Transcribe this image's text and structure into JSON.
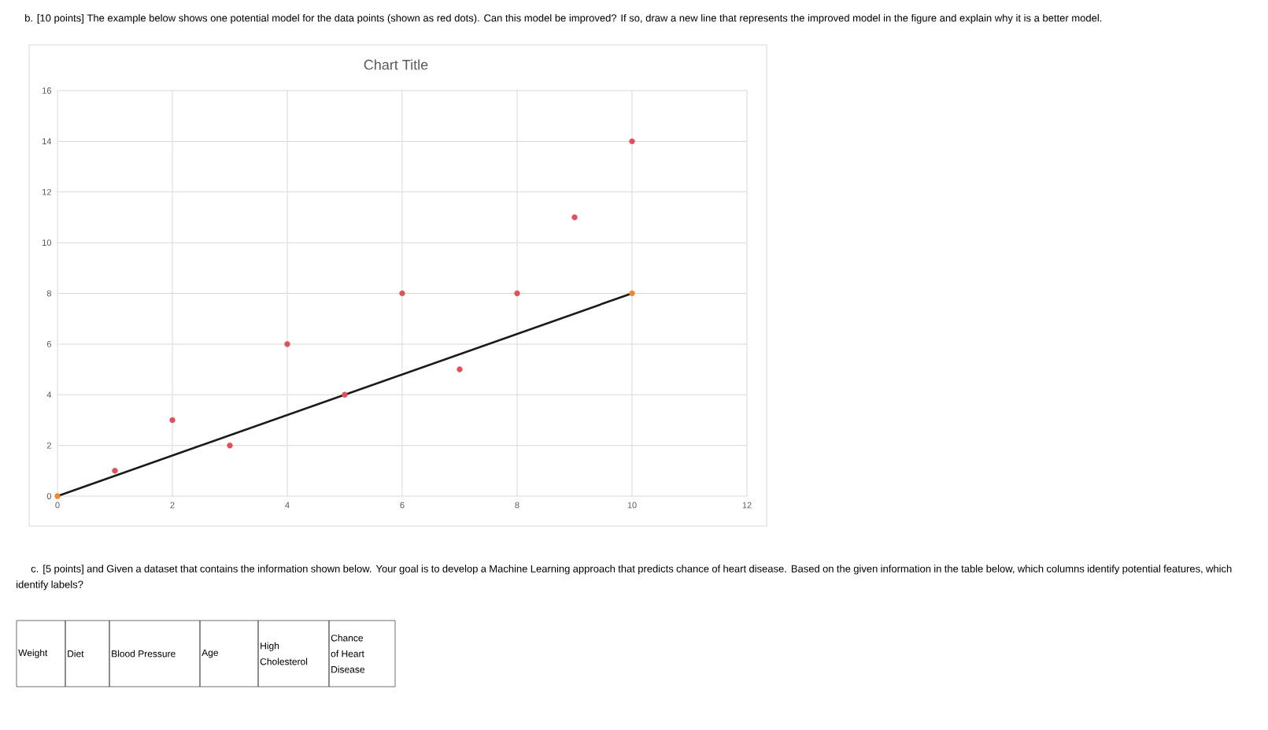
{
  "chart_data": {
    "type": "scatter",
    "title": "Chart Title",
    "annotations": [
      "b. [10 points] The example below shows one potential model for the data points (shown as red dots). Can this model be improved? If so, draw a new line that represents the improved model in the figure and explain why it is a better model.",
      "c. [5 points] and Given a dataset that contains the information shown below. Your goal is to develop a Machine Learning approach that predicts chance of heart disease. Based on the given information in the table below, which columns identify potential features, which identify labels?",
      "Weight",
      "Diet",
      "Blood Pressure",
      "Age",
      "High Cholesterol",
      "Chance of Heart Disease"
    ],
    "series": [
      {
        "color": "#e0505a",
        "x": [
          1,
          2,
          3,
          4,
          5,
          6,
          7,
          8,
          9,
          10
        ],
        "values": [
          1,
          3,
          2,
          6,
          4,
          8,
          5,
          8,
          11,
          14
        ]
      },
      {
        "type": "line",
        "color": "#1a1a1a",
        "marker": "none",
        "x": [
          0,
          10
        ],
        "values": [
          0,
          8
        ]
      },
      {
        "color": "#f0882c",
        "x": [
          0,
          10
        ],
        "values": [
          0,
          8
        ]
      }
    ],
    "xlim": [
      0,
      12
    ],
    "ylim": [
      0,
      16
    ],
    "xticks": [
      0,
      2,
      4,
      6,
      8,
      10,
      12
    ],
    "yticks": [
      0,
      2,
      4,
      6,
      8,
      10,
      12,
      14,
      16
    ],
    "grid": true,
    "marker": "circle"
  }
}
